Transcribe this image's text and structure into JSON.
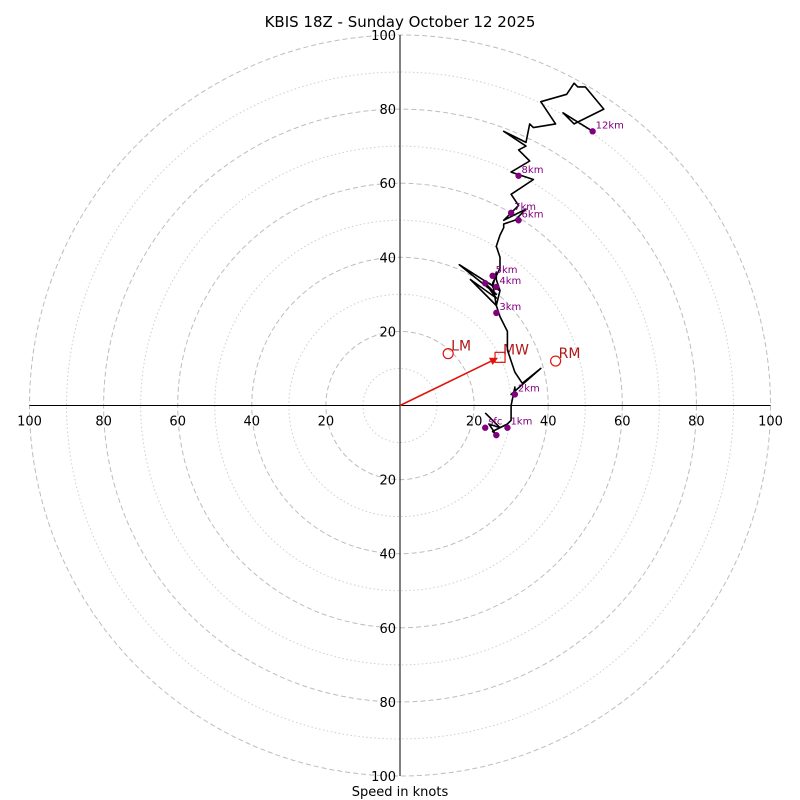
{
  "chart_data": {
    "type": "hodograph",
    "title": "KBIS 18Z - Sunday October 12 2025",
    "xlabel": "Speed in knots",
    "range": [
      -100,
      100
    ],
    "ring_major": [
      20,
      40,
      60,
      80,
      100
    ],
    "ring_minor": [
      10,
      30,
      50,
      70,
      90
    ],
    "tick_labels": {
      "left": [
        "100",
        "80",
        "60",
        "40",
        "20"
      ],
      "right": [
        "20",
        "40",
        "60",
        "80",
        "100"
      ],
      "top": [
        "20",
        "40",
        "60",
        "80",
        "100"
      ],
      "bottom": [
        "20",
        "40",
        "60",
        "80",
        "100"
      ]
    },
    "tick_values": [
      20,
      40,
      60,
      80,
      100
    ],
    "trace": [
      [
        23,
        -2
      ],
      [
        27,
        -6
      ],
      [
        24,
        -5
      ],
      [
        26,
        -8
      ],
      [
        25,
        -7
      ],
      [
        29,
        -5
      ],
      [
        30,
        -4
      ],
      [
        30,
        0
      ],
      [
        31,
        5
      ],
      [
        31,
        3
      ],
      [
        30,
        3
      ],
      [
        38,
        10
      ],
      [
        33,
        6
      ],
      [
        31,
        9
      ],
      [
        30,
        12
      ],
      [
        29,
        15
      ],
      [
        29,
        17
      ],
      [
        29,
        19
      ],
      [
        29,
        20
      ],
      [
        27,
        24
      ],
      [
        26,
        27
      ],
      [
        27,
        31
      ],
      [
        26,
        34
      ],
      [
        26,
        36
      ],
      [
        25,
        32
      ],
      [
        27,
        31
      ],
      [
        24,
        33
      ],
      [
        27,
        31
      ],
      [
        16,
        38
      ],
      [
        26,
        30
      ],
      [
        23,
        33
      ],
      [
        26,
        29
      ],
      [
        19,
        34
      ],
      [
        26,
        27
      ],
      [
        25,
        33
      ],
      [
        27,
        37
      ],
      [
        27,
        40
      ],
      [
        26,
        43
      ],
      [
        27,
        46
      ],
      [
        28,
        48
      ],
      [
        28,
        49
      ],
      [
        31,
        50
      ],
      [
        34,
        53
      ],
      [
        28,
        50
      ],
      [
        32,
        54
      ],
      [
        30,
        57
      ],
      [
        33,
        59
      ],
      [
        36,
        61
      ],
      [
        30,
        63
      ],
      [
        35,
        66
      ],
      [
        32,
        69
      ],
      [
        34,
        70
      ],
      [
        28,
        74
      ],
      [
        34,
        71
      ],
      [
        35,
        76
      ],
      [
        36,
        75
      ],
      [
        42,
        76
      ],
      [
        38,
        82
      ],
      [
        45,
        84
      ],
      [
        47,
        87
      ],
      [
        48,
        86
      ],
      [
        50,
        86
      ],
      [
        55,
        80
      ],
      [
        47,
        76
      ],
      [
        44,
        79
      ],
      [
        52,
        74
      ]
    ],
    "height_markers": [
      {
        "label": "sfc",
        "u": 23,
        "v": -6,
        "show": true
      },
      {
        "label": "",
        "u": 26,
        "v": -8,
        "show": false
      },
      {
        "label": "1km",
        "u": 29,
        "v": -6,
        "show": true
      },
      {
        "label": "2km",
        "u": 31,
        "v": 3,
        "show": true
      },
      {
        "label": "3km",
        "u": 26,
        "v": 25,
        "show": true
      },
      {
        "label": "",
        "u": 23,
        "v": 33,
        "show": false
      },
      {
        "label": "4km",
        "u": 26,
        "v": 32,
        "show": true
      },
      {
        "label": "5km",
        "u": 25,
        "v": 35,
        "show": true
      },
      {
        "label": "6km",
        "u": 32,
        "v": 50,
        "show": true
      },
      {
        "label": "7km",
        "u": 30,
        "v": 52,
        "show": true
      },
      {
        "label": "8km",
        "u": 32,
        "v": 62,
        "show": true
      },
      {
        "label": "12km",
        "u": 52,
        "v": 74,
        "show": true
      }
    ],
    "storm_motion": {
      "mean_wind": {
        "label": "MW",
        "u": 27,
        "v": 13
      },
      "left_mover": {
        "label": "LM",
        "u": 13,
        "v": 14
      },
      "right_mover": {
        "label": "RM",
        "u": 42,
        "v": 12
      }
    },
    "colors": {
      "trace": "#000000",
      "marker": "#800080",
      "motion": "#e0140c",
      "motion_label": "#b01818",
      "ring_major": "#bdbdbd",
      "ring_minor": "#cfcfcf",
      "axis": "#000000"
    }
  }
}
